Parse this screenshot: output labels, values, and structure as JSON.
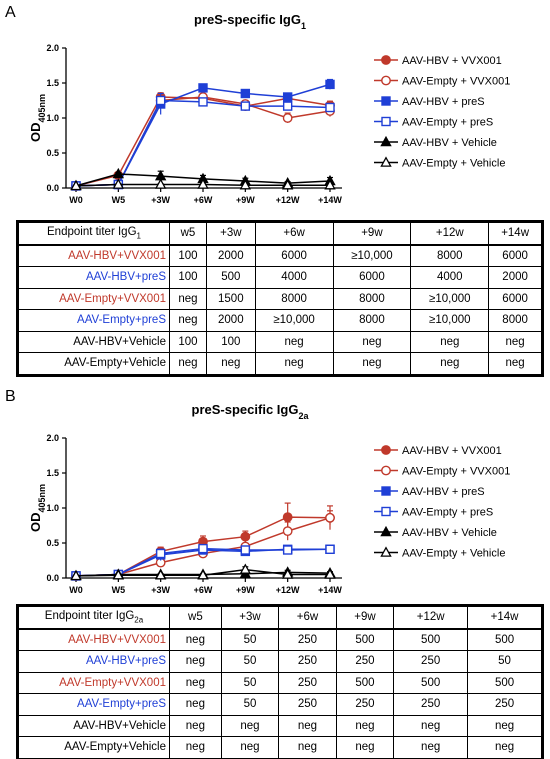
{
  "panels": [
    {
      "letter": "A",
      "table_header": {
        "label_main": "Endpoint titer IgG",
        "label_sub": "1",
        "columns": [
          "w5",
          "+3w",
          "+6w",
          "+9w",
          "+12w",
          "+14w"
        ]
      },
      "table_rows": [
        {
          "group": "AAV-HBV+VVX001",
          "color": "#c0392b",
          "values": [
            "100",
            "2000",
            "6000",
            "≥10,000",
            "8000",
            "6000"
          ]
        },
        {
          "group": "AAV-HBV+preS",
          "color": "#1f3fd6",
          "values": [
            "100",
            "500",
            "4000",
            "6000",
            "4000",
            "2000"
          ]
        },
        {
          "group": "AAV-Empty+VVX001",
          "color": "#c0392b",
          "values": [
            "neg",
            "1500",
            "8000",
            "8000",
            "≥10,000",
            "6000"
          ]
        },
        {
          "group": "AAV-Empty+preS",
          "color": "#1f3fd6",
          "values": [
            "neg",
            "2000",
            "≥10,000",
            "8000",
            "≥10,000",
            "8000"
          ]
        },
        {
          "group": "AAV-HBV+Vehicle",
          "color": "#000000",
          "values": [
            "100",
            "100",
            "neg",
            "neg",
            "neg",
            "neg"
          ]
        },
        {
          "group": "AAV-Empty+Vehicle",
          "color": "#000000",
          "values": [
            "neg",
            "neg",
            "neg",
            "neg",
            "neg",
            "neg"
          ]
        }
      ]
    },
    {
      "letter": "B",
      "table_header": {
        "label_main": "Endpoint titer IgG",
        "label_sub": "2a",
        "columns": [
          "w5",
          "+3w",
          "+6w",
          "+9w",
          "+12w",
          "+14w"
        ]
      },
      "table_rows": [
        {
          "group": "AAV-HBV+VVX001",
          "color": "#c0392b",
          "values": [
            "neg",
            "50",
            "250",
            "500",
            "500",
            "500"
          ]
        },
        {
          "group": "AAV-HBV+preS",
          "color": "#1f3fd6",
          "values": [
            "neg",
            "50",
            "250",
            "250",
            "250",
            "50"
          ]
        },
        {
          "group": "AAV-Empty+VVX001",
          "color": "#c0392b",
          "values": [
            "neg",
            "50",
            "250",
            "500",
            "500",
            "500"
          ]
        },
        {
          "group": "AAV-Empty+preS",
          "color": "#1f3fd6",
          "values": [
            "neg",
            "50",
            "250",
            "250",
            "250",
            "250"
          ]
        },
        {
          "group": "AAV-HBV+Vehicle",
          "color": "#000000",
          "values": [
            "neg",
            "neg",
            "neg",
            "neg",
            "neg",
            "neg"
          ]
        },
        {
          "group": "AAV-Empty+Vehicle",
          "color": "#000000",
          "values": [
            "neg",
            "neg",
            "neg",
            "neg",
            "neg",
            "neg"
          ]
        }
      ]
    }
  ],
  "chart_data": [
    {
      "type": "line",
      "title_main": "preS-specific IgG",
      "title_sub": "1",
      "ylabel_main": "OD",
      "ylabel_sub": "405nm",
      "ylim": [
        0,
        2.0
      ],
      "yticks": [
        "0.0",
        "0.5",
        "1.0",
        "1.5",
        "2.0"
      ],
      "categories": [
        "W0",
        "W5",
        "+3W",
        "+6W",
        "+9W",
        "+12W",
        "+14W"
      ],
      "legend_position": "top-right",
      "series": [
        {
          "name": "AAV-HBV + VVX001",
          "color": "#c0392b",
          "marker": "circle-filled",
          "values": [
            0.03,
            0.18,
            1.3,
            1.28,
            1.17,
            1.28,
            1.18
          ],
          "errors": [
            0.01,
            0.03,
            0.06,
            0.05,
            0.05,
            0.05,
            0.06
          ]
        },
        {
          "name": "AAV-Empty + VVX001",
          "color": "#c0392b",
          "marker": "circle-open",
          "values": [
            0.03,
            0.05,
            1.25,
            1.3,
            1.2,
            1.0,
            1.1
          ],
          "errors": [
            0.01,
            0.02,
            0.06,
            0.05,
            0.05,
            0.07,
            0.08
          ]
        },
        {
          "name": "AAV-HBV + preS",
          "color": "#1f3fd6",
          "marker": "square-filled",
          "values": [
            0.03,
            0.05,
            1.2,
            1.43,
            1.35,
            1.3,
            1.48
          ],
          "errors": [
            0.01,
            0.01,
            0.15,
            0.05,
            0.04,
            0.04,
            0.07
          ]
        },
        {
          "name": "AAV-Empty + preS",
          "color": "#1f3fd6",
          "marker": "square-open",
          "values": [
            0.03,
            0.05,
            1.25,
            1.23,
            1.17,
            1.17,
            1.15
          ],
          "errors": [
            0.01,
            0.01,
            0.05,
            0.04,
            0.04,
            0.04,
            0.05
          ]
        },
        {
          "name": "AAV-HBV + Vehicle",
          "color": "#000000",
          "marker": "triangle-filled",
          "values": [
            0.03,
            0.2,
            0.17,
            0.13,
            0.1,
            0.07,
            0.1
          ],
          "errors": [
            0.01,
            0.02,
            0.07,
            0.05,
            0.04,
            0.02,
            0.05
          ]
        },
        {
          "name": "AAV-Empty + Vehicle",
          "color": "#000000",
          "marker": "triangle-open",
          "values": [
            0.03,
            0.05,
            0.05,
            0.05,
            0.04,
            0.04,
            0.04
          ],
          "errors": [
            0.01,
            0.01,
            0.01,
            0.01,
            0.01,
            0.01,
            0.01
          ]
        }
      ]
    },
    {
      "type": "line",
      "title_main": "preS-specific IgG",
      "title_sub": "2a",
      "ylabel_main": "OD",
      "ylabel_sub": "405nm",
      "ylim": [
        0,
        2.0
      ],
      "yticks": [
        "0.0",
        "0.5",
        "1.0",
        "1.5",
        "2.0"
      ],
      "categories": [
        "W0",
        "W5",
        "+3W",
        "+6W",
        "+9W",
        "+12W",
        "+14W"
      ],
      "legend_position": "top-right",
      "series": [
        {
          "name": "AAV-HBV + VVX001",
          "color": "#c0392b",
          "marker": "circle-filled",
          "values": [
            0.03,
            0.05,
            0.38,
            0.52,
            0.59,
            0.87,
            0.86
          ],
          "errors": [
            0.01,
            0.01,
            0.06,
            0.08,
            0.08,
            0.2,
            0.17
          ]
        },
        {
          "name": "AAV-Empty + VVX001",
          "color": "#c0392b",
          "marker": "circle-open",
          "values": [
            0.03,
            0.05,
            0.22,
            0.35,
            0.45,
            0.67,
            0.86
          ],
          "errors": [
            0.01,
            0.01,
            0.05,
            0.06,
            0.1,
            0.13,
            0.1
          ]
        },
        {
          "name": "AAV-HBV + preS",
          "color": "#1f3fd6",
          "marker": "square-filled",
          "values": [
            0.03,
            0.05,
            0.33,
            0.4,
            0.38,
            0.41,
            0.41
          ],
          "errors": [
            0.01,
            0.01,
            0.08,
            0.05,
            0.04,
            0.03,
            0.03
          ]
        },
        {
          "name": "AAV-Empty + preS",
          "color": "#1f3fd6",
          "marker": "square-open",
          "values": [
            0.03,
            0.05,
            0.35,
            0.42,
            0.4,
            0.4,
            0.41
          ],
          "errors": [
            0.01,
            0.01,
            0.06,
            0.04,
            0.03,
            0.03,
            0.03
          ]
        },
        {
          "name": "AAV-HBV + Vehicle",
          "color": "#000000",
          "marker": "triangle-filled",
          "values": [
            0.03,
            0.05,
            0.05,
            0.05,
            0.06,
            0.08,
            0.07
          ],
          "errors": [
            0.01,
            0.01,
            0.01,
            0.01,
            0.02,
            0.03,
            0.02
          ]
        },
        {
          "name": "AAV-Empty + Vehicle",
          "color": "#000000",
          "marker": "triangle-open",
          "values": [
            0.03,
            0.04,
            0.04,
            0.04,
            0.12,
            0.05,
            0.05
          ],
          "errors": [
            0.01,
            0.01,
            0.01,
            0.01,
            0.04,
            0.02,
            0.02
          ]
        }
      ]
    }
  ]
}
